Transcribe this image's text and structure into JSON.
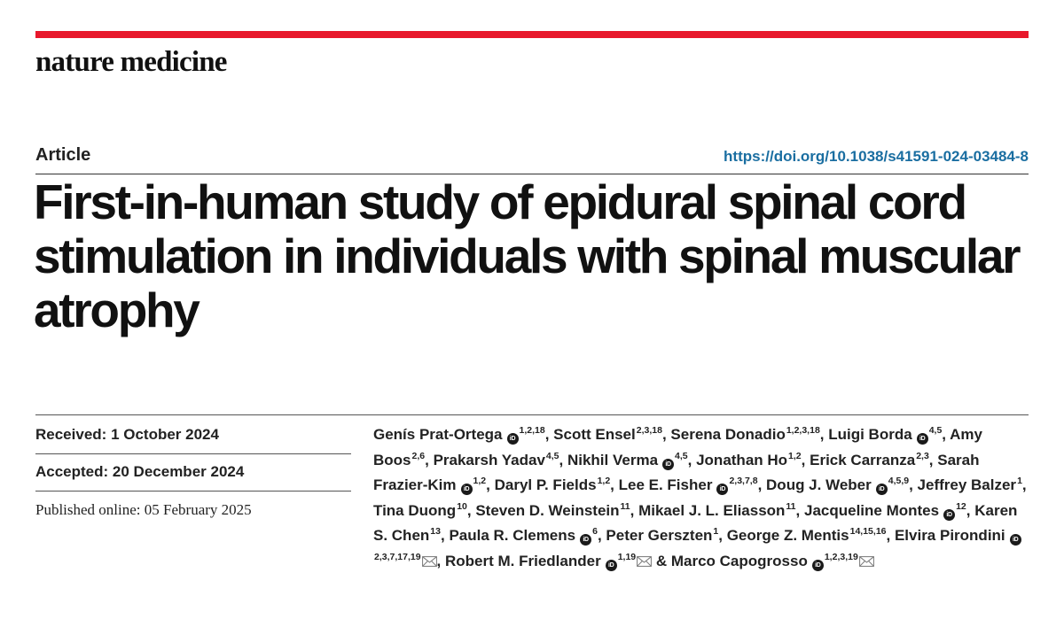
{
  "journal": "nature medicine",
  "article_type": "Article",
  "doi": "https://doi.org/10.1038/s41591-024-03484-8",
  "title": "First-in-human study of epidural spinal cord stimulation in individuals with spinal muscular atrophy",
  "received_label": "Received:",
  "received_date": "1 October 2024",
  "accepted_label": "Accepted:",
  "accepted_date": "20 December 2024",
  "published_label": "Published online:",
  "published_date": "05 February 2025",
  "orcid_text": "iD",
  "authors": [
    {
      "name": "Genís Prat-Ortega",
      "orcid": true,
      "aff": "1,2,18",
      "email": false,
      "sep": ", "
    },
    {
      "name": "Scott Ensel",
      "orcid": false,
      "aff": "2,3,18",
      "email": false,
      "sep": ", "
    },
    {
      "name": "Serena Donadio",
      "orcid": false,
      "aff": "1,2,3,18",
      "email": false,
      "sep": ", "
    },
    {
      "name": "Luigi Borda",
      "orcid": true,
      "aff": "4,5",
      "email": false,
      "sep": ", "
    },
    {
      "name": "Amy Boos",
      "orcid": false,
      "aff": "2,6",
      "email": false,
      "sep": ", "
    },
    {
      "name": "Prakarsh Yadav",
      "orcid": false,
      "aff": "4,5",
      "email": false,
      "sep": ", "
    },
    {
      "name": "Nikhil Verma",
      "orcid": true,
      "aff": "4,5",
      "email": false,
      "sep": ", "
    },
    {
      "name": "Jonathan Ho",
      "orcid": false,
      "aff": "1,2",
      "email": false,
      "sep": ", "
    },
    {
      "name": "Erick Carranza",
      "orcid": false,
      "aff": "2,3",
      "email": false,
      "sep": ", "
    },
    {
      "name": "Sarah Frazier-Kim",
      "orcid": true,
      "aff": "1,2",
      "email": false,
      "sep": ", "
    },
    {
      "name": "Daryl P. Fields",
      "orcid": false,
      "aff": "1,2",
      "email": false,
      "sep": ", "
    },
    {
      "name": "Lee E. Fisher",
      "orcid": true,
      "aff": "2,3,7,8",
      "email": false,
      "sep": ", "
    },
    {
      "name": "Doug J. Weber",
      "orcid": true,
      "aff": "4,5,9",
      "email": false,
      "sep": ", "
    },
    {
      "name": "Jeffrey Balzer",
      "orcid": false,
      "aff": "1",
      "email": false,
      "sep": ", "
    },
    {
      "name": "Tina Duong",
      "orcid": false,
      "aff": "10",
      "email": false,
      "sep": ", "
    },
    {
      "name": "Steven D. Weinstein",
      "orcid": false,
      "aff": "11",
      "email": false,
      "sep": ", "
    },
    {
      "name": "Mikael J. L. Eliasson",
      "orcid": false,
      "aff": "11",
      "email": false,
      "sep": ", "
    },
    {
      "name": "Jacqueline Montes",
      "orcid": true,
      "aff": "12",
      "email": false,
      "sep": ", "
    },
    {
      "name": "Karen S. Chen",
      "orcid": false,
      "aff": "13",
      "email": false,
      "sep": ", "
    },
    {
      "name": "Paula R. Clemens",
      "orcid": true,
      "aff": "6",
      "email": false,
      "sep": ", "
    },
    {
      "name": "Peter Gerszten",
      "orcid": false,
      "aff": "1",
      "email": false,
      "sep": ", "
    },
    {
      "name": "George Z. Mentis",
      "orcid": false,
      "aff": "14,15,16",
      "email": false,
      "sep": ", "
    },
    {
      "name": "Elvira Pirondini",
      "orcid": true,
      "aff": "2,3,7,17,19",
      "email": true,
      "sep": ", "
    },
    {
      "name": "Robert M. Friedlander",
      "orcid": true,
      "aff": "1,19",
      "email": true,
      "sep": " & "
    },
    {
      "name": "Marco Capogrosso",
      "orcid": true,
      "aff": "1,2,3,19",
      "email": true,
      "sep": ""
    }
  ],
  "icons": {
    "orcid": "orcid-icon",
    "email": "envelope-icon"
  },
  "colors": {
    "accent_bar": "#e8182c",
    "doi_link": "#1a6ea1",
    "text": "#111111"
  }
}
